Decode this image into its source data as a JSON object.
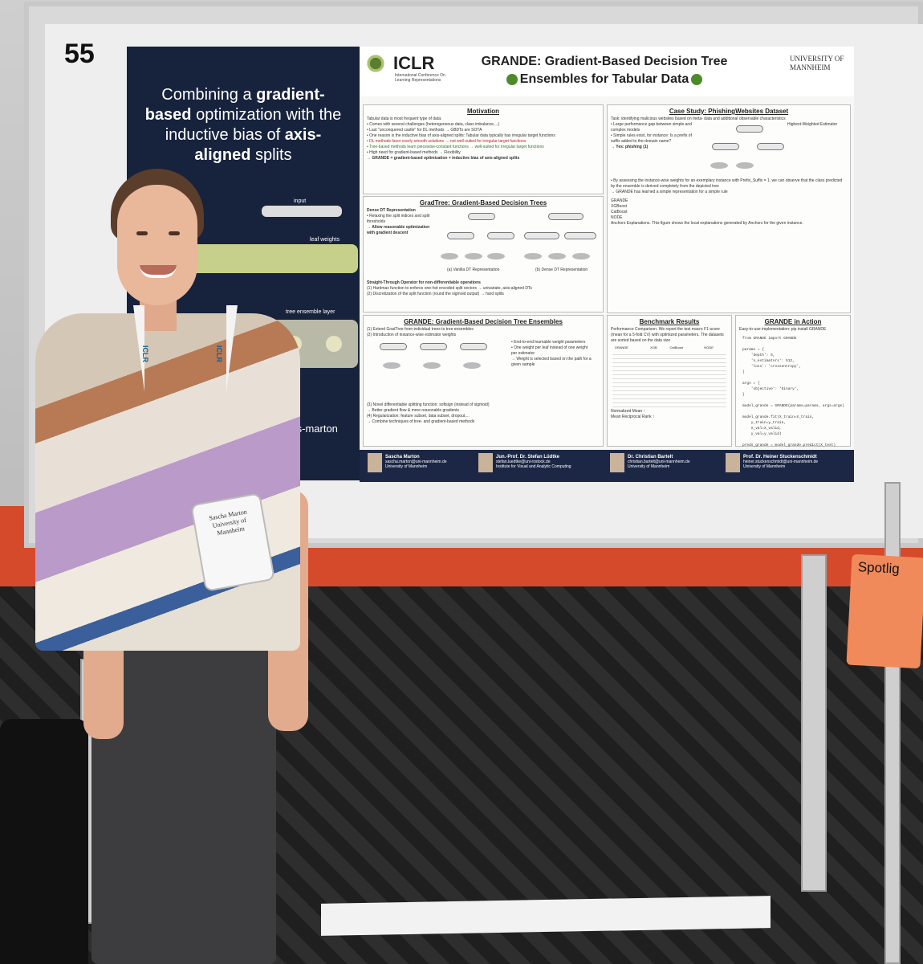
{
  "board": {
    "number": "55"
  },
  "side_panel": {
    "title_parts": [
      "Combining a ",
      "gradient-based",
      " optimization with the inductive bias of ",
      "axis-aligned",
      " splits"
    ],
    "diagram_labels": [
      "input",
      "leaf weights",
      "tree ensemble layer"
    ],
    "handle": "/s-marton"
  },
  "poster": {
    "logo": "ICLR",
    "logo_sub": "International Conference On Learning Representations",
    "title_line1": "GRANDE: Gradient-Based Decision Tree",
    "title_line2": "Ensembles for Tabular Data",
    "university": "UNIVERSITY OF MANNHEIM",
    "motivation": {
      "heading": "Motivation",
      "lines": [
        "Tabular data is most frequent type of data:",
        "• Comes with several challenges (heterogeneous data, class imbalance,...)",
        "• Last \"unconquered castle\" for DL methods → GBDTs are SOTA",
        "• One reason is the inductive bias of axis-aligned splits: Tabular data typically has irregular target functions",
        "• DL methods favor overly smooth solutions → not well-suited for irregular target functions",
        "• Tree-based methods learn piecewise-constant functions → well-suited for irregular target functions",
        "• High need for gradient-based methods → Flexibility"
      ],
      "conclusion": "→ GRANDE = gradient-based optimization + inductive bias of axis-aligned splits"
    },
    "gradtree": {
      "heading": "GradTree: Gradient-Based Decision Trees",
      "sub": "Dense DT Representation",
      "bullets": [
        "• Relaxing the split indices and split thresholds",
        "→ Allow reasonable optimization with gradient descent"
      ],
      "caption_a": "(a) Vanilla DT Representation",
      "caption_b": "(b) Dense DT Representation",
      "st_heading": "Straight-Through Operator for non-differentiable operations",
      "st_lines": [
        "(1) Hardmax function to enforce one-hot encoded split vectors → univariate, axis-aligned DTs",
        "(2) Discretization of the split function (round the sigmoid output) → hard splits"
      ]
    },
    "grande": {
      "heading": "GRANDE: Gradient-Based Decision Tree Ensembles",
      "lines": [
        "(1) Extend GradTree from individual trees to tree ensembles",
        "(2) Introduction of instance-wise estimator weights"
      ],
      "bullets": [
        "• End-to-end learnable weight parameters",
        "• One weight per leaf instead of one weight per estimator",
        "→ Weight is selected based on the path for a given sample"
      ],
      "lines2": [
        "(3) Novel differentiable splitting function: softsign (instead of sigmoid)",
        "→ Better gradient flow & more reasonable gradients",
        "(4) Regularization: feature subset, data subset, dropout,...",
        "→ Combine techniques of tree- and gradient-based methods"
      ]
    },
    "case_study": {
      "heading": "Case Study: PhishingWebsites Dataset",
      "task": "Task: identifying malicious websites based on meta- data and additional observable characteristics",
      "bullets": [
        "• Large performance gap between simple and complex models",
        "• Simple rules exist, for instance: Is a prefix of suffix added to the domain name?",
        "→ Yes: phishing (1)"
      ],
      "note_title": "Highest-Weighted Estimator",
      "assess": "• By assessing the instance-wise weights for an exemplary instance with Prefix_Suffix = 1, we can observe that the class predicted by the ensemble is derived completely from the depicted tree",
      "learned": "→ GRANDE has learned a simple representation for a simple rule",
      "methods": [
        "GRANDE",
        "XGBoost",
        "CatBoost",
        "NODE"
      ],
      "anchors": "Anchors Explanations. This figure shows the local explanations generated by Anchors for the given instance."
    },
    "benchmark": {
      "heading": "Benchmark Results",
      "intro": "Performance Comparison. We report the test macro F1-score (mean for a 5-fold CV) with optimized parameters. The datasets are sorted based on the data size",
      "columns": [
        "",
        "GRANDE",
        "XGB",
        "CatBoost",
        "NODE"
      ],
      "summary": [
        "Normalized Mean ↑",
        "Mean Reciprocal Rank ↑"
      ]
    },
    "in_action": {
      "heading": "GRANDE in Action",
      "install": "Easy-to-use implementation: pip install GRANDE",
      "code": "from GRANDE import GRANDE\n\nparams = {\n    'depth': 5,\n    'n_estimators': 512,\n    'loss': 'crossentropy',\n}\n\nargs = {\n    'objective': 'binary',\n}\n\nmodel_grande = GRANDE(params=params, args=args)\n\nmodel_grande.fit(X_train=X_train,\n    y_train=y_train,\n    X_val=X_valid,\n    y_val=y_valid)\n\npreds_grande = model_grande.predict(X_test)"
    },
    "authors": [
      {
        "name": "Sascha Marton",
        "email": "sascha.marton@uni-mannheim.de",
        "affil": "University of Mannheim"
      },
      {
        "name": "Jun.-Prof. Dr. Stefan Lüdtke",
        "email": "stefan.luedtke@uni-rostock.de",
        "affil": "Institute for Visual and Analytic Computing"
      },
      {
        "name": "Dr. Christian Bartelt",
        "email": "christian.bartelt@uni-mannheim.de",
        "affil": "University of Mannheim"
      },
      {
        "name": "Prof. Dr. Heiner Stuckenschmidt",
        "email": "heiner.stuckenschmidt@uni-mannheim.de",
        "affil": "University of Mannheim"
      }
    ]
  },
  "person": {
    "lanyard_text": "ICLR",
    "badge_name": "Sascha Marton University of Mannheim"
  },
  "sign": {
    "text": "Spotlig"
  }
}
